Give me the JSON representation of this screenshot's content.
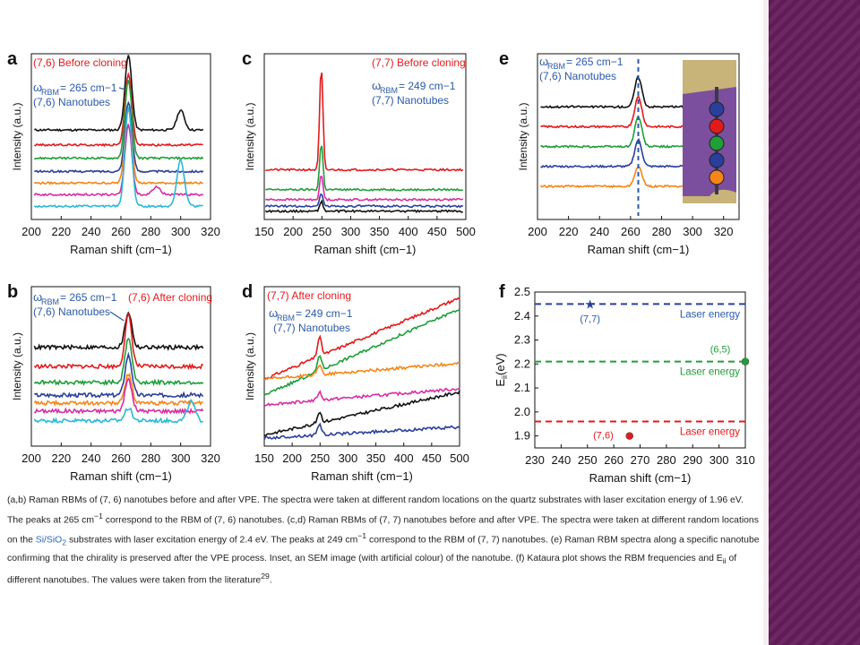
{
  "caption": {
    "part1": "(a,b) Raman RBMs of (7, 6) nanotubes before and after VPE. The spectra were taken at different random locations on the quartz substrates with laser excitation energy of 1.96 eV. The peaks at 265 cm",
    "part2": " correspond to the RBM of (7, 6) nanotubes. (c,d) Raman RBMs of (7, 7) nanotubes before and after VPE. The spectra were taken at different random locations on the ",
    "substrate": "Si/SiO",
    "part3": " substrates with laser excitation energy of 2.4 eV. The peaks at 249 cm",
    "part4": " correspond to the RBM of (7, 7) nanotubes. (e) Raman RBM spectra along a specific nanotube confirming that the chirality is preserved after the VPE process. Inset, an SEM image (with artificial colour) of the nanotube. (f) Kataura plot shows the RBM frequencies and E",
    "part5": " of different nanotubes. The values were taken from the literature",
    "ref": "29",
    "superscript_minus1": "−1",
    "sub2": "2",
    "sub_ii": "ii"
  },
  "colors": {
    "black": "#111111",
    "red": "#e31a1c",
    "green": "#1f9e3a",
    "blue": "#2a3f9c",
    "orange": "#f58518",
    "magenta": "#d62ea3",
    "purple": "#7d3c98",
    "cyan": "#2bb8d8",
    "label_red": "#e31a1c",
    "label_blue": "#2a5aa8",
    "label_green": "#1f9e3a"
  },
  "chart_data": [
    {
      "panel": "a",
      "type": "line",
      "xlabel": "Raman shift (cm−1)",
      "ylabel": "Intensity (a.u.)",
      "xlim": [
        200,
        320
      ],
      "xticks": [
        200,
        220,
        240,
        260,
        280,
        300,
        320
      ],
      "annotations": {
        "title": "(7,6) Before cloning",
        "omega": "265 cm−1",
        "chirality": "(7,6) Nanotubes"
      },
      "peak": 265,
      "baselines": [
        0.54,
        0.45,
        0.37,
        0.29,
        0.22,
        0.15,
        0.08
      ],
      "peak_heights": [
        0.45,
        0.43,
        0.47,
        0.42,
        0.45,
        0.42,
        0.6
      ],
      "series_colors": [
        "black",
        "red",
        "green",
        "blue",
        "orange",
        "magenta",
        "cyan"
      ],
      "extra_peaks": [
        {
          "series": 0,
          "x": 300,
          "h": 0.12
        },
        {
          "series": 6,
          "x": 300,
          "h": 0.28
        },
        {
          "series": 5,
          "x": 284,
          "h": 0.05
        }
      ]
    },
    {
      "panel": "b",
      "type": "line",
      "xlabel": "Raman shift (cm−1)",
      "ylabel": "Intensity (a.u.)",
      "xlim": [
        200,
        320
      ],
      "xticks": [
        200,
        220,
        240,
        260,
        280,
        300,
        320
      ],
      "annotations": {
        "title": "(7,6) After cloning",
        "omega": "265 cm−1",
        "chirality": "(7,6) Nanotubes"
      },
      "peak": 265,
      "baselines": [
        0.62,
        0.5,
        0.4,
        0.32,
        0.27,
        0.22,
        0.16
      ],
      "peak_heights": [
        0.22,
        0.32,
        0.28,
        0.25,
        0.18,
        0.2,
        0.08
      ],
      "series_colors": [
        "black",
        "red",
        "green",
        "blue",
        "orange",
        "magenta",
        "cyan"
      ],
      "extra_peaks": [
        {
          "series": 6,
          "x": 307,
          "h": 0.12
        }
      ]
    },
    {
      "panel": "c",
      "type": "line",
      "xlabel": "Raman shift (cm−1)",
      "ylabel": "Intensity (a.u.)",
      "xlim": [
        150,
        500
      ],
      "xticks": [
        150,
        200,
        250,
        300,
        350,
        400,
        450,
        500
      ],
      "annotations": {
        "title": "(7,7) Before cloning",
        "omega": "249 cm−1",
        "chirality": "(7,7) Nanotubes"
      },
      "peak": 249,
      "baselines": [
        0.3,
        0.18,
        0.12,
        0.08,
        0.05
      ],
      "peak_heights": [
        0.62,
        0.28,
        0.15,
        0.08,
        0.06
      ],
      "series_colors": [
        "red",
        "green",
        "magenta",
        "blue",
        "black"
      ]
    },
    {
      "panel": "d",
      "type": "line",
      "xlabel": "Raman shift (cm−1)",
      "ylabel": "Intensity (a.u.)",
      "xlim": [
        150,
        500
      ],
      "xticks": [
        150,
        200,
        250,
        300,
        350,
        400,
        450,
        500
      ],
      "annotations": {
        "title": "(7,7) After cloning",
        "omega": "249 cm−1",
        "chirality": "(7,7) Nanotubes"
      },
      "peak": 249,
      "lines": [
        {
          "color": "red",
          "start": 0.42,
          "end": 0.93,
          "h": 0.12
        },
        {
          "color": "green",
          "start": 0.32,
          "end": 0.86,
          "h": 0.1
        },
        {
          "color": "orange",
          "start": 0.42,
          "end": 0.52,
          "h": 0.06
        },
        {
          "color": "magenta",
          "start": 0.26,
          "end": 0.36,
          "h": 0.05
        },
        {
          "color": "black",
          "start": 0.07,
          "end": 0.34,
          "h": 0.07
        },
        {
          "color": "blue",
          "start": 0.05,
          "end": 0.12,
          "h": 0.07
        }
      ]
    },
    {
      "panel": "e",
      "type": "line",
      "xlabel": "Raman shift (cm−1)",
      "ylabel": "Intensity (a.u.)",
      "xlim": [
        200,
        330
      ],
      "xticks": [
        200,
        220,
        240,
        260,
        280,
        300,
        320
      ],
      "annotations": {
        "omega": "265 cm−1",
        "chirality": "(7,6) Nanotubes"
      },
      "peak": 265,
      "baselines": [
        0.68,
        0.56,
        0.44,
        0.32,
        0.2
      ],
      "peak_heights": [
        0.18,
        0.18,
        0.18,
        0.16,
        0.12
      ],
      "series_colors": [
        "black",
        "red",
        "green",
        "blue",
        "orange"
      ],
      "inset_dots": [
        "blue",
        "red",
        "green",
        "blue",
        "orange"
      ]
    },
    {
      "panel": "f",
      "type": "scatter",
      "xlabel": "Raman shift (cm−1)",
      "ylabel": "E",
      "ylabel_sub": "ii",
      "ylabel_unit": "(eV)",
      "xlim": [
        230,
        310
      ],
      "ylim": [
        1.85,
        2.5
      ],
      "xticks": [
        230,
        240,
        250,
        260,
        270,
        280,
        290,
        300,
        310
      ],
      "yticks": [
        1.9,
        2.0,
        2.1,
        2.2,
        2.3,
        2.4,
        2.5
      ],
      "laser_lines": [
        {
          "y": 2.45,
          "color": "blue",
          "label": "Laser energy"
        },
        {
          "y": 2.21,
          "color": "green",
          "label": "Laser energy"
        },
        {
          "y": 1.96,
          "color": "red",
          "label": "Laser energy"
        }
      ],
      "points": [
        {
          "x": 251,
          "y": 2.45,
          "label": "(7,7)",
          "color": "blue",
          "marker": "star"
        },
        {
          "x": 310,
          "y": 2.21,
          "label": "(6,5)",
          "color": "green",
          "marker": "circle"
        },
        {
          "x": 266,
          "y": 1.9,
          "label": "(7,6)",
          "color": "red",
          "marker": "circle"
        }
      ]
    }
  ]
}
